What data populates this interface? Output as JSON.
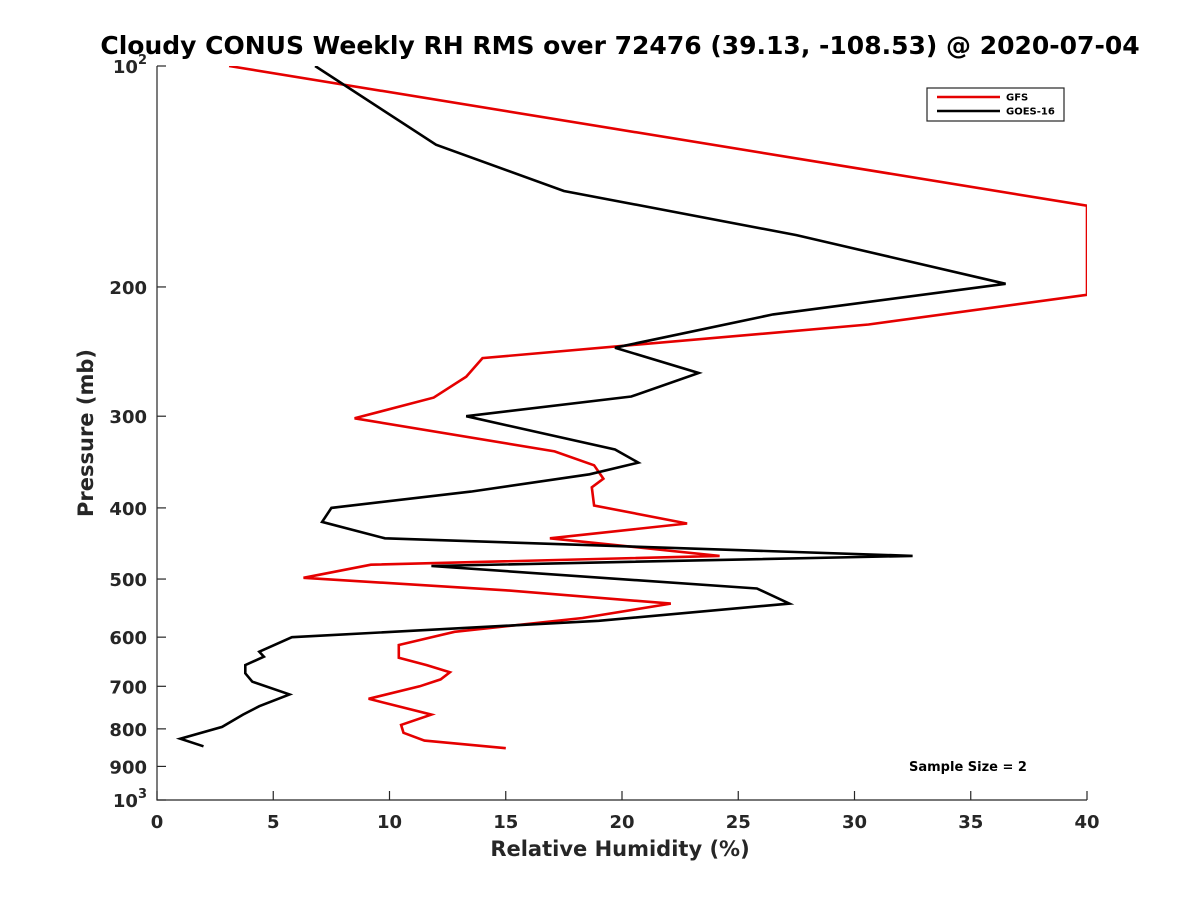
{
  "chart_data": {
    "type": "line",
    "title": "Cloudy CONUS Weekly RH RMS over 72476 (39.13, -108.53) @ 2020-07-04",
    "xlabel": "Relative Humidity (%)",
    "ylabel": "Pressure (mb)",
    "xlim": [
      0,
      40
    ],
    "ylim": [
      100,
      1000
    ],
    "y_scale": "log",
    "y_reversed": true,
    "x_ticks": [
      {
        "value": 0,
        "label": "0"
      },
      {
        "value": 5,
        "label": "5"
      },
      {
        "value": 10,
        "label": "10"
      },
      {
        "value": 15,
        "label": "15"
      },
      {
        "value": 20,
        "label": "20"
      },
      {
        "value": 25,
        "label": "25"
      },
      {
        "value": 30,
        "label": "30"
      },
      {
        "value": 35,
        "label": "35"
      },
      {
        "value": 40,
        "label": "40"
      }
    ],
    "y_ticks": [
      {
        "value": 100,
        "base": "10",
        "exp": "2"
      },
      {
        "value": 200,
        "base": "200",
        "exp": ""
      },
      {
        "value": 300,
        "base": "300",
        "exp": ""
      },
      {
        "value": 400,
        "base": "400",
        "exp": ""
      },
      {
        "value": 500,
        "base": "500",
        "exp": ""
      },
      {
        "value": 600,
        "base": "600",
        "exp": ""
      },
      {
        "value": 700,
        "base": "700",
        "exp": ""
      },
      {
        "value": 800,
        "base": "800",
        "exp": ""
      },
      {
        "value": 900,
        "base": "900",
        "exp": ""
      },
      {
        "value": 1000,
        "base": "10",
        "exp": "3"
      }
    ],
    "grid": false,
    "legend_position": "top-right",
    "annotation": "Sample Size = 2",
    "series": [
      {
        "name": "GFS",
        "color": "#e50000",
        "points": [
          [
            3.1,
            100
          ],
          [
            40,
            155
          ],
          [
            40,
            205
          ],
          [
            30.6,
            225
          ],
          [
            14.0,
            250
          ],
          [
            13.3,
            265
          ],
          [
            11.9,
            283
          ],
          [
            8.5,
            302
          ],
          [
            17.1,
            335
          ],
          [
            18.8,
            350
          ],
          [
            19.2,
            365
          ],
          [
            18.7,
            375
          ],
          [
            18.8,
            397
          ],
          [
            22.8,
            420
          ],
          [
            16.9,
            440
          ],
          [
            24.2,
            465
          ],
          [
            9.2,
            478
          ],
          [
            6.3,
            498
          ],
          [
            15.0,
            518
          ],
          [
            22.1,
            540
          ],
          [
            18.3,
            565
          ],
          [
            12.8,
            590
          ],
          [
            10.4,
            615
          ],
          [
            10.4,
            640
          ],
          [
            11.6,
            655
          ],
          [
            12.6,
            670
          ],
          [
            12.2,
            685
          ],
          [
            11.3,
            700
          ],
          [
            9.1,
            728
          ],
          [
            11.8,
            765
          ],
          [
            10.5,
            790
          ],
          [
            10.6,
            810
          ],
          [
            11.5,
            830
          ],
          [
            15.0,
            850
          ]
        ]
      },
      {
        "name": "GOES-16",
        "color": "#000000",
        "points": [
          [
            6.8,
            100
          ],
          [
            12.0,
            128
          ],
          [
            17.5,
            148
          ],
          [
            27.5,
            170
          ],
          [
            36.5,
            198
          ],
          [
            26.5,
            218
          ],
          [
            19.7,
            242
          ],
          [
            23.3,
            262
          ],
          [
            20.4,
            282
          ],
          [
            13.3,
            300
          ],
          [
            19.7,
            333
          ],
          [
            20.7,
            347
          ],
          [
            18.6,
            360
          ],
          [
            13.5,
            380
          ],
          [
            7.5,
            400
          ],
          [
            7.1,
            418
          ],
          [
            9.8,
            440
          ],
          [
            32.5,
            465
          ],
          [
            11.8,
            480
          ],
          [
            25.8,
            515
          ],
          [
            27.2,
            540
          ],
          [
            19.0,
            570
          ],
          [
            5.8,
            600
          ],
          [
            4.4,
            628
          ],
          [
            4.6,
            638
          ],
          [
            3.8,
            655
          ],
          [
            3.8,
            672
          ],
          [
            4.1,
            690
          ],
          [
            5.7,
            718
          ],
          [
            4.4,
            745
          ],
          [
            3.7,
            765
          ],
          [
            2.8,
            795
          ],
          [
            1.0,
            825
          ],
          [
            2.0,
            845
          ]
        ]
      }
    ]
  }
}
